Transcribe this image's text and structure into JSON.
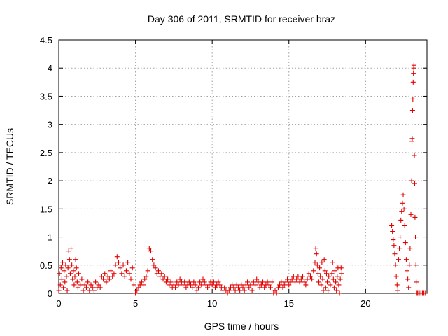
{
  "chart_data": {
    "type": "scatter",
    "title": "Day 306 of 2011, SRMTID for receiver braz",
    "xlabel": "GPS time / hours",
    "ylabel": "SRMTID / TECUs",
    "xlim": [
      0,
      24
    ],
    "ylim": [
      0,
      4.5
    ],
    "xticks": [
      0,
      5,
      10,
      15,
      20
    ],
    "yticks": [
      0,
      0.5,
      1,
      1.5,
      2,
      2.5,
      3,
      3.5,
      4,
      4.5
    ],
    "x_tick_labels": [
      "0",
      "5",
      "10",
      "15",
      "20"
    ],
    "y_tick_labels": [
      "0",
      "0.5",
      "1",
      "1.5",
      "2",
      "2.5",
      "3",
      "3.5",
      "4",
      "4.5"
    ],
    "grid": true,
    "marker": "+",
    "color": "#e00000",
    "series": [
      {
        "points": [
          [
            0.0,
            0.05
          ],
          [
            0.05,
            0.35
          ],
          [
            0.1,
            0.15
          ],
          [
            0.15,
            0.45
          ],
          [
            0.2,
            0.25
          ],
          [
            0.25,
            0.55
          ],
          [
            0.3,
            0.1
          ],
          [
            0.35,
            0.4
          ],
          [
            0.4,
            0.2
          ],
          [
            0.45,
            0.5
          ],
          [
            0.5,
            0.3
          ],
          [
            0.55,
            0.05
          ],
          [
            0.6,
            0.45
          ],
          [
            0.65,
            0.75
          ],
          [
            0.7,
            0.6
          ],
          [
            0.75,
            0.35
          ],
          [
            0.8,
            0.8
          ],
          [
            0.85,
            0.5
          ],
          [
            0.9,
            0.25
          ],
          [
            0.95,
            0.4
          ],
          [
            1.0,
            0.15
          ],
          [
            1.05,
            0.3
          ],
          [
            1.1,
            0.6
          ],
          [
            1.15,
            0.45
          ],
          [
            1.2,
            0.2
          ],
          [
            1.25,
            0.1
          ],
          [
            1.3,
            0.35
          ],
          [
            1.4,
            0.15
          ],
          [
            1.5,
            0.25
          ],
          [
            1.6,
            0.05
          ],
          [
            1.7,
            0.15
          ],
          [
            1.8,
            0.1
          ],
          [
            1.9,
            0.2
          ],
          [
            2.0,
            0.05
          ],
          [
            2.1,
            0.15
          ],
          [
            2.2,
            0.1
          ],
          [
            2.3,
            0.05
          ],
          [
            2.4,
            0.2
          ],
          [
            2.5,
            0.1
          ],
          [
            2.6,
            0.15
          ],
          [
            2.7,
            0.1
          ],
          [
            2.8,
            0.3
          ],
          [
            2.9,
            0.25
          ],
          [
            3.0,
            0.35
          ],
          [
            3.1,
            0.2
          ],
          [
            3.2,
            0.3
          ],
          [
            3.3,
            0.25
          ],
          [
            3.4,
            0.4
          ],
          [
            3.5,
            0.3
          ],
          [
            3.6,
            0.35
          ],
          [
            3.7,
            0.5
          ],
          [
            3.8,
            0.65
          ],
          [
            3.9,
            0.55
          ],
          [
            4.0,
            0.45
          ],
          [
            4.1,
            0.35
          ],
          [
            4.2,
            0.5
          ],
          [
            4.3,
            0.3
          ],
          [
            4.4,
            0.4
          ],
          [
            4.5,
            0.55
          ],
          [
            4.6,
            0.35
          ],
          [
            4.7,
            0.25
          ],
          [
            4.8,
            0.45
          ],
          [
            4.9,
            0.15
          ],
          [
            5.0,
            0.0
          ],
          [
            5.1,
            0.05
          ],
          [
            5.2,
            0.1
          ],
          [
            5.3,
            0.15
          ],
          [
            5.4,
            0.2
          ],
          [
            5.5,
            0.15
          ],
          [
            5.6,
            0.25
          ],
          [
            5.7,
            0.3
          ],
          [
            5.8,
            0.4
          ],
          [
            5.9,
            0.8
          ],
          [
            6.0,
            0.75
          ],
          [
            6.1,
            0.6
          ],
          [
            6.2,
            0.5
          ],
          [
            6.3,
            0.45
          ],
          [
            6.4,
            0.35
          ],
          [
            6.5,
            0.4
          ],
          [
            6.6,
            0.3
          ],
          [
            6.7,
            0.35
          ],
          [
            6.8,
            0.25
          ],
          [
            6.9,
            0.3
          ],
          [
            7.0,
            0.2
          ],
          [
            7.1,
            0.25
          ],
          [
            7.2,
            0.15
          ],
          [
            7.3,
            0.2
          ],
          [
            7.4,
            0.1
          ],
          [
            7.5,
            0.15
          ],
          [
            7.6,
            0.1
          ],
          [
            7.7,
            0.2
          ],
          [
            7.8,
            0.15
          ],
          [
            7.9,
            0.25
          ],
          [
            8.0,
            0.2
          ],
          [
            8.1,
            0.15
          ],
          [
            8.2,
            0.2
          ],
          [
            8.3,
            0.1
          ],
          [
            8.4,
            0.15
          ],
          [
            8.5,
            0.2
          ],
          [
            8.6,
            0.15
          ],
          [
            8.7,
            0.1
          ],
          [
            8.8,
            0.2
          ],
          [
            8.9,
            0.15
          ],
          [
            9.0,
            0.05
          ],
          [
            9.1,
            0.1
          ],
          [
            9.2,
            0.2
          ],
          [
            9.3,
            0.15
          ],
          [
            9.4,
            0.25
          ],
          [
            9.5,
            0.2
          ],
          [
            9.6,
            0.15
          ],
          [
            9.7,
            0.1
          ],
          [
            9.8,
            0.15
          ],
          [
            9.9,
            0.2
          ],
          [
            10.0,
            0.15
          ],
          [
            10.1,
            0.2
          ],
          [
            10.2,
            0.1
          ],
          [
            10.3,
            0.15
          ],
          [
            10.4,
            0.2
          ],
          [
            10.5,
            0.15
          ],
          [
            10.6,
            0.1
          ],
          [
            10.7,
            0.05
          ],
          [
            10.8,
            0.1
          ],
          [
            10.9,
            0.05
          ],
          [
            11.0,
            0.0
          ],
          [
            11.1,
            0.05
          ],
          [
            11.2,
            0.1
          ],
          [
            11.3,
            0.15
          ],
          [
            11.4,
            0.1
          ],
          [
            11.5,
            0.05
          ],
          [
            11.6,
            0.15
          ],
          [
            11.7,
            0.1
          ],
          [
            11.8,
            0.05
          ],
          [
            11.9,
            0.15
          ],
          [
            12.0,
            0.1
          ],
          [
            12.1,
            0.05
          ],
          [
            12.2,
            0.15
          ],
          [
            12.3,
            0.2
          ],
          [
            12.4,
            0.1
          ],
          [
            12.5,
            0.15
          ],
          [
            12.6,
            0.05
          ],
          [
            12.7,
            0.2
          ],
          [
            12.8,
            0.15
          ],
          [
            12.9,
            0.25
          ],
          [
            13.0,
            0.2
          ],
          [
            13.1,
            0.1
          ],
          [
            13.2,
            0.15
          ],
          [
            13.3,
            0.2
          ],
          [
            13.4,
            0.1
          ],
          [
            13.5,
            0.15
          ],
          [
            13.6,
            0.2
          ],
          [
            13.7,
            0.15
          ],
          [
            13.8,
            0.1
          ],
          [
            13.9,
            0.2
          ],
          [
            14.0,
            0.0
          ],
          [
            14.1,
            0.05
          ],
          [
            14.2,
            0.0
          ],
          [
            14.3,
            0.1
          ],
          [
            14.4,
            0.15
          ],
          [
            14.5,
            0.2
          ],
          [
            14.6,
            0.1
          ],
          [
            14.7,
            0.15
          ],
          [
            14.8,
            0.2
          ],
          [
            14.9,
            0.25
          ],
          [
            15.0,
            0.15
          ],
          [
            15.1,
            0.2
          ],
          [
            15.2,
            0.25
          ],
          [
            15.3,
            0.3
          ],
          [
            15.4,
            0.2
          ],
          [
            15.5,
            0.25
          ],
          [
            15.6,
            0.3
          ],
          [
            15.7,
            0.2
          ],
          [
            15.8,
            0.25
          ],
          [
            15.9,
            0.3
          ],
          [
            16.0,
            0.2
          ],
          [
            16.1,
            0.15
          ],
          [
            16.2,
            0.25
          ],
          [
            16.3,
            0.35
          ],
          [
            16.4,
            0.3
          ],
          [
            16.5,
            0.25
          ],
          [
            16.6,
            0.4
          ],
          [
            16.7,
            0.55
          ],
          [
            16.75,
            0.8
          ],
          [
            16.8,
            0.7
          ],
          [
            16.85,
            0.5
          ],
          [
            16.9,
            0.35
          ],
          [
            16.95,
            0.2
          ],
          [
            17.0,
            0.45
          ],
          [
            17.05,
            0.3
          ],
          [
            17.1,
            0.15
          ],
          [
            17.15,
            0.55
          ],
          [
            17.2,
            0.25
          ],
          [
            17.25,
            0.05
          ],
          [
            17.3,
            0.6
          ],
          [
            17.35,
            0.4
          ],
          [
            17.4,
            0.1
          ],
          [
            17.45,
            0.35
          ],
          [
            17.5,
            0.2
          ],
          [
            17.55,
            0.05
          ],
          [
            17.6,
            0.3
          ],
          [
            17.7,
            0.15
          ],
          [
            17.8,
            0.35
          ],
          [
            17.85,
            0.55
          ],
          [
            17.9,
            0.25
          ],
          [
            17.95,
            0.1
          ],
          [
            18.0,
            0.4
          ],
          [
            18.05,
            0.2
          ],
          [
            18.1,
            0.05
          ],
          [
            18.15,
            0.3
          ],
          [
            18.2,
            0.45
          ],
          [
            18.25,
            0.15
          ],
          [
            18.3,
            0.0
          ],
          [
            18.35,
            0.25
          ],
          [
            18.4,
            0.45
          ],
          [
            18.45,
            0.35
          ],
          [
            21.7,
            1.2
          ],
          [
            21.75,
            1.1
          ],
          [
            21.8,
            0.95
          ],
          [
            21.85,
            0.85
          ],
          [
            21.9,
            0.7
          ],
          [
            21.95,
            0.5
          ],
          [
            22.0,
            0.3
          ],
          [
            22.05,
            0.15
          ],
          [
            22.1,
            0.05
          ],
          [
            22.15,
            0.6
          ],
          [
            22.2,
            0.8
          ],
          [
            22.25,
            1.0
          ],
          [
            22.3,
            1.3
          ],
          [
            22.35,
            1.45
          ],
          [
            22.4,
            1.6
          ],
          [
            22.45,
            1.75
          ],
          [
            22.5,
            1.5
          ],
          [
            22.55,
            1.2
          ],
          [
            22.6,
            0.9
          ],
          [
            22.65,
            0.6
          ],
          [
            22.7,
            0.4
          ],
          [
            22.75,
            0.25
          ],
          [
            22.8,
            0.1
          ],
          [
            22.85,
            0.5
          ],
          [
            22.9,
            0.8
          ],
          [
            22.95,
            1.4
          ],
          [
            23.0,
            2.0
          ],
          [
            23.02,
            2.7
          ],
          [
            23.04,
            2.75
          ],
          [
            23.06,
            3.25
          ],
          [
            23.08,
            3.45
          ],
          [
            23.1,
            3.75
          ],
          [
            23.12,
            3.9
          ],
          [
            23.14,
            4.0
          ],
          [
            23.15,
            4.05
          ],
          [
            23.18,
            2.45
          ],
          [
            23.2,
            1.95
          ],
          [
            23.22,
            1.35
          ],
          [
            23.25,
            1.0
          ],
          [
            23.28,
            0.5
          ],
          [
            23.3,
            0.2
          ],
          [
            23.35,
            0.0
          ],
          [
            23.4,
            0.0
          ],
          [
            23.5,
            0.0
          ],
          [
            23.6,
            0.0
          ],
          [
            23.7,
            0.0
          ],
          [
            23.8,
            0.0
          ],
          [
            23.9,
            0.0
          ]
        ]
      }
    ]
  }
}
